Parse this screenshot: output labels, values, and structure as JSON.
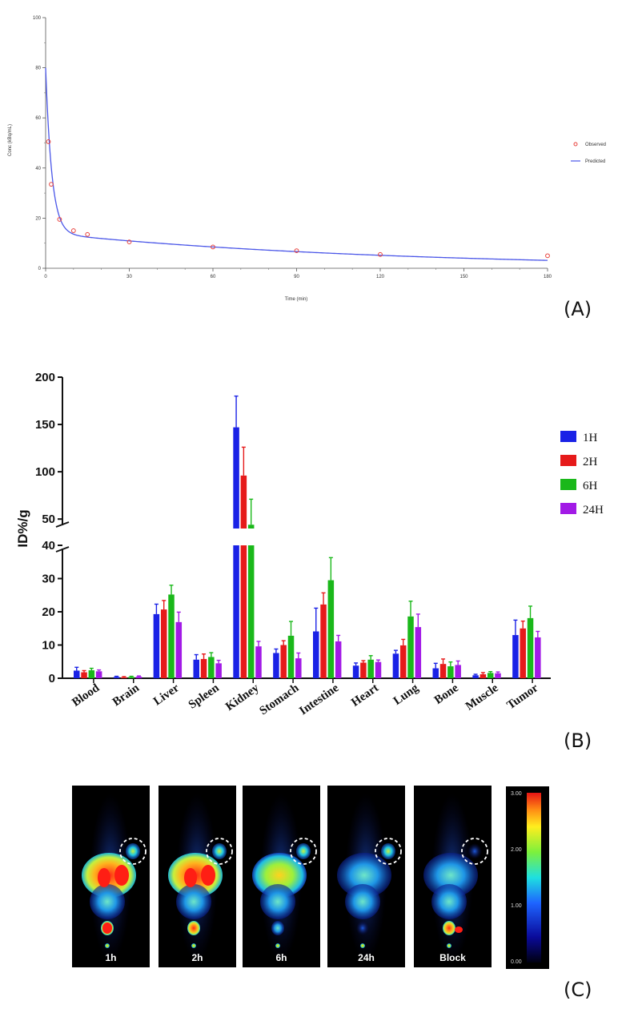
{
  "panel_labels": [
    "(A)",
    "(B)",
    "(C)"
  ],
  "chart_data": [
    {
      "type": "scatter",
      "panel": "(A)",
      "xlabel": "Time (min)",
      "ylabel": "Conc (kBq/mL)",
      "xlim": [
        0,
        180
      ],
      "ylim": [
        0,
        100
      ],
      "xticks": [
        0,
        30,
        60,
        90,
        120,
        150,
        180
      ],
      "yticks": [
        0,
        20,
        40,
        60,
        80,
        100
      ],
      "legend": [
        "Observed",
        "Predicted"
      ],
      "legend_position": "right",
      "colors": {
        "observed": "#e8413c",
        "predicted": "#4a56e8"
      },
      "observed": {
        "x": [
          1,
          2,
          5,
          10,
          15,
          30,
          60,
          90,
          120,
          180
        ],
        "y": [
          50.5,
          33.5,
          19.5,
          15,
          13.5,
          10.5,
          8.5,
          7,
          5.5,
          5
        ]
      },
      "predicted_model": {
        "A": 66,
        "a": 0.45,
        "B": 14,
        "b": 0.0083
      }
    },
    {
      "type": "bar",
      "panel": "(B)",
      "ylabel": "ID%/g",
      "broken_axis": {
        "lower": [
          0,
          40
        ],
        "upper": [
          40,
          200
        ]
      },
      "yticks_lower": [
        0,
        10,
        20,
        30,
        40
      ],
      "yticks_upper": [
        50,
        100,
        150,
        200
      ],
      "categories": [
        "Blood",
        "Brain",
        "Liver",
        "Spleen",
        "Kidney",
        "Stomach",
        "Intestine",
        "Heart",
        "Lung",
        "Bone",
        "Muscle",
        "Tumor"
      ],
      "legend_position": "right",
      "series": [
        {
          "name": "1H",
          "color": "#1a22e6",
          "values": [
            2.3,
            0.4,
            19.3,
            5.6,
            147,
            7.6,
            14.1,
            3.8,
            7.4,
            3.0,
            0.9,
            13.0
          ],
          "errors": [
            1.0,
            0.2,
            3.0,
            1.5,
            33,
            1.2,
            7.0,
            0.8,
            1.0,
            1.5,
            0.3,
            4.5
          ]
        },
        {
          "name": "2H",
          "color": "#e61a1a",
          "values": [
            1.8,
            0.3,
            20.7,
            5.8,
            96,
            10.0,
            22.2,
            4.7,
            9.9,
            4.3,
            1.2,
            15.0
          ],
          "errors": [
            0.5,
            0.2,
            2.7,
            1.5,
            30,
            1.3,
            3.5,
            0.6,
            1.8,
            1.5,
            0.5,
            2.2
          ]
        },
        {
          "name": "6H",
          "color": "#1ab81a",
          "values": [
            2.4,
            0.4,
            25.2,
            6.4,
            43,
            12.8,
            29.5,
            5.6,
            18.6,
            3.6,
            1.6,
            18.1
          ],
          "errors": [
            0.6,
            0.2,
            2.8,
            1.3,
            28,
            4.3,
            6.8,
            1.2,
            4.6,
            1.3,
            0.4,
            3.6
          ]
        },
        {
          "name": "24H",
          "color": "#a21ae6",
          "values": [
            2.1,
            0.5,
            16.9,
            4.5,
            9.6,
            6.0,
            11.1,
            4.9,
            15.4,
            4.0,
            1.5,
            12.3
          ],
          "errors": [
            0.4,
            0.2,
            3.0,
            0.9,
            1.5,
            1.6,
            1.8,
            0.6,
            3.9,
            1.2,
            0.4,
            1.8
          ]
        }
      ]
    }
  ],
  "pet_panel": {
    "panel": "(C)",
    "frames": [
      "1h",
      "2h",
      "6h",
      "24h",
      "Block"
    ],
    "colorbar_ticks": [
      "3.00",
      "2.00",
      "1.00",
      "0.00"
    ]
  }
}
